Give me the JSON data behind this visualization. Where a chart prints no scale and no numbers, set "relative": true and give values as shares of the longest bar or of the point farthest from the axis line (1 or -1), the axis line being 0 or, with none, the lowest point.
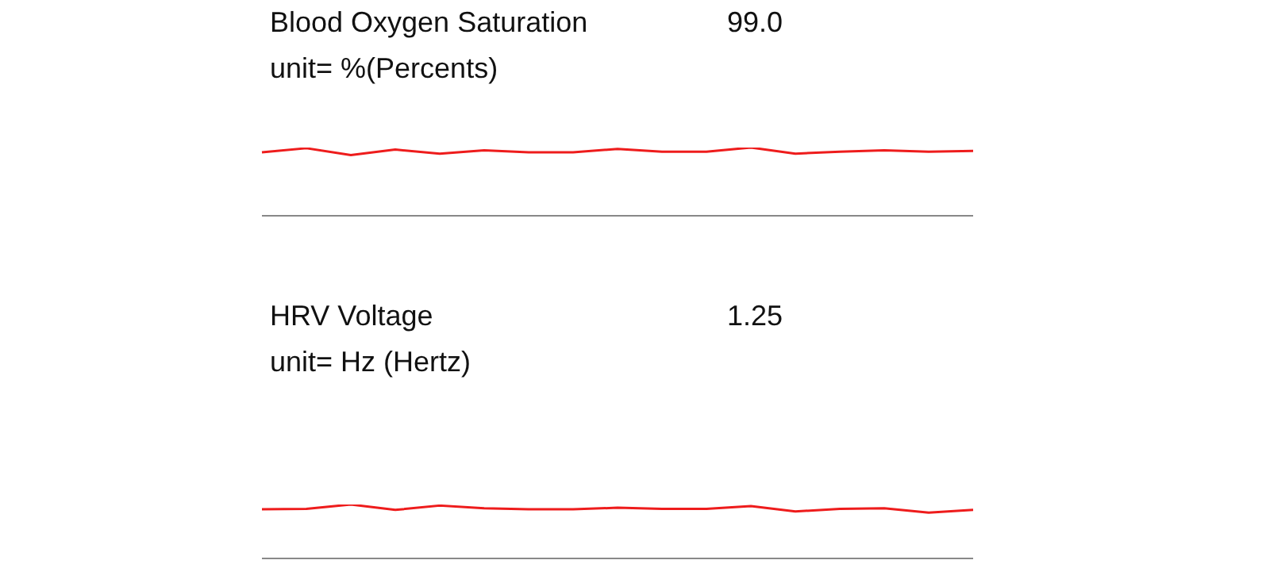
{
  "chart_data": [
    {
      "type": "line",
      "title": "Blood Oxygen Saturation",
      "subtitle": "unit= %(Percents)",
      "annotations": [
        "99.0"
      ],
      "relative": true,
      "tick_labels": false,
      "categories": [
        null,
        null,
        null,
        null,
        null,
        null,
        null,
        null,
        null,
        null,
        null,
        null,
        null,
        null,
        null,
        null,
        null
      ],
      "series": [
        {
          "color": "#ee1c1c",
          "values": [
            0.93,
            0.99,
            0.89,
            0.97,
            0.91,
            0.96,
            0.93,
            0.93,
            0.98,
            0.94,
            0.94,
            1,
            0.91,
            0.94,
            0.96,
            0.94,
            0.95
          ]
        }
      ]
    },
    {
      "type": "line",
      "title": "HRV Voltage",
      "subtitle": "unit= Hz (Hertz)",
      "annotations": [
        "1.25"
      ],
      "relative": true,
      "tick_labels": false,
      "categories": [
        null,
        null,
        null,
        null,
        null,
        null,
        null,
        null,
        null,
        null,
        null,
        null,
        null,
        null,
        null,
        null,
        null
      ],
      "series": [
        {
          "color": "#ee1c1c",
          "values": [
            0.91,
            0.92,
            1,
            0.9,
            0.98,
            0.93,
            0.91,
            0.91,
            0.94,
            0.92,
            0.92,
            0.97,
            0.87,
            0.92,
            0.93,
            0.85,
            0.9
          ]
        }
      ]
    }
  ]
}
